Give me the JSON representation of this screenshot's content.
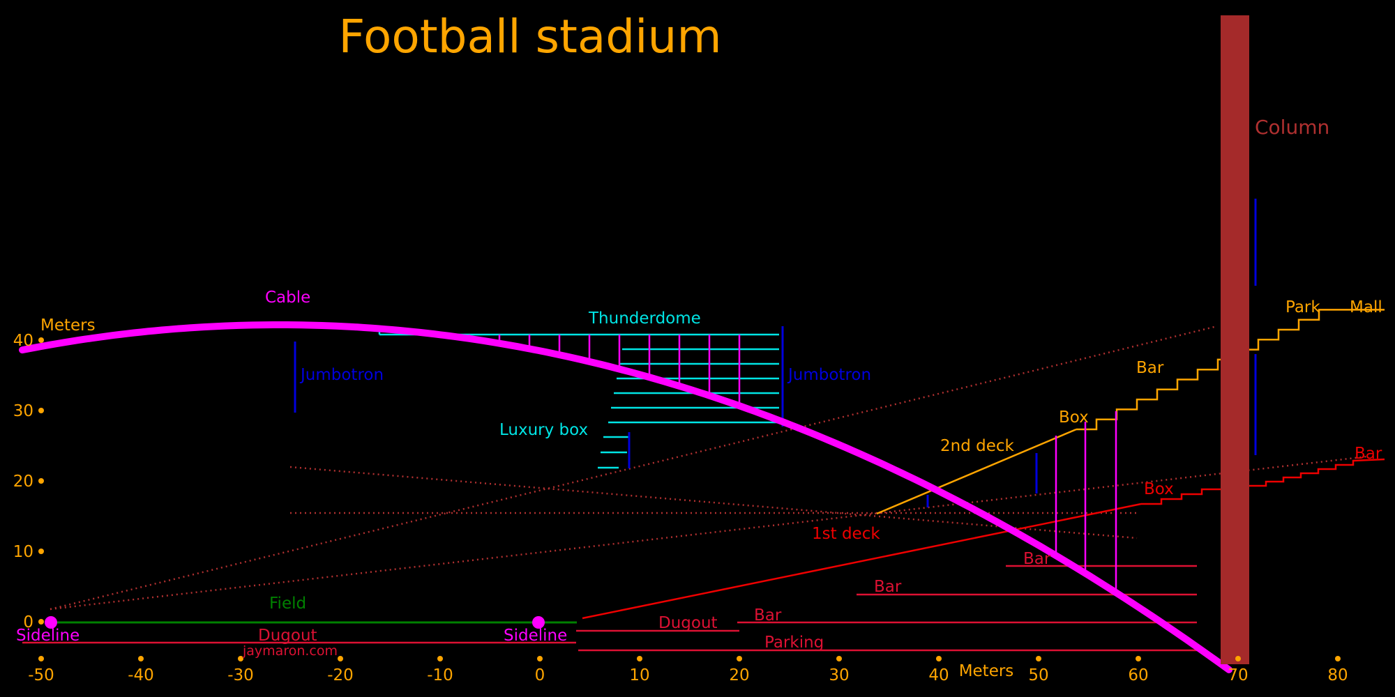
{
  "title": "Football stadium",
  "credit": "jaymaron.com",
  "colors": {
    "background": "#000000",
    "title": "#ffa500",
    "axis": "#ffa500",
    "cable": "#ff00ff",
    "hanger": "#ff00ff",
    "thunderdome": "#00e5e5",
    "jumbotron": "#0000dd",
    "field": "#008000",
    "lower_structure": "#dd1133",
    "first_deck": "#ee0000",
    "second_deck": "#ffa500",
    "sightline": "#b03030",
    "column": "#a52a2a"
  },
  "axes": {
    "x_label": "Meters",
    "y_label": "Meters",
    "x_ticks": [
      -50,
      -40,
      -30,
      -20,
      -10,
      0,
      10,
      20,
      30,
      40,
      50,
      60,
      70,
      80
    ],
    "y_ticks": [
      0,
      10,
      20,
      30,
      40
    ]
  },
  "labels": {
    "cable": "Cable",
    "thunderdome": "Thunderdome",
    "luxury_box": "Luxury box",
    "jumbotron_left": "Jumbotron",
    "jumbotron_right": "Jumbotron",
    "field": "Field",
    "sideline_left": "Sideline",
    "sideline_right": "Sideline",
    "dugout_left": "Dugout",
    "dugout_right": "Dugout",
    "parking": "Parking",
    "first_deck": "1st deck",
    "second_deck": "2nd deck",
    "column": "Column",
    "park": "Park",
    "mall": "Mall",
    "bar_lower_1": "Bar",
    "bar_lower_2": "Bar",
    "bar_lower_3": "Bar",
    "box_first_deck": "Box",
    "bar_first_deck": "Bar",
    "box_second_deck": "Box",
    "bar_second_deck": "Bar"
  }
}
